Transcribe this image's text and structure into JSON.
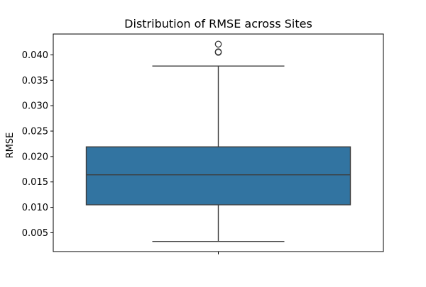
{
  "chart_data": {
    "type": "box",
    "title": "Distribution of RMSE across Sites",
    "xlabel": "",
    "ylabel": "RMSE",
    "ylim": [
      0.0013,
      0.0441
    ],
    "yticks": [
      0.005,
      0.01,
      0.015,
      0.02,
      0.025,
      0.03,
      0.035,
      0.04
    ],
    "ytick_labels": [
      "0.005",
      "0.010",
      "0.015",
      "0.020",
      "0.025",
      "0.030",
      "0.035",
      "0.040"
    ],
    "grid": false,
    "box": {
      "whisker_low": 0.0033,
      "q1": 0.0105,
      "median": 0.0164,
      "q3": 0.0219,
      "whisker_high": 0.0378
    },
    "outliers": [
      0.0405,
      0.0406,
      0.0421
    ],
    "box_color": "#3274a1",
    "line_color": "#3d3d3d"
  }
}
